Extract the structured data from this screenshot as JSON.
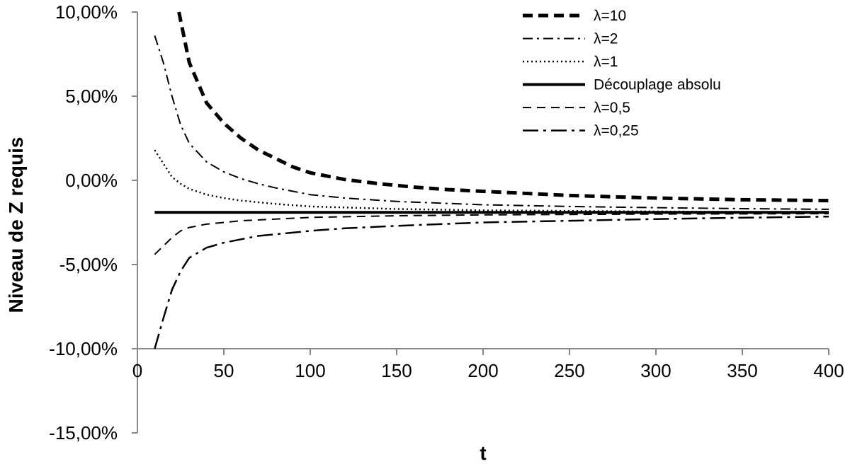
{
  "chart_data": {
    "type": "line",
    "title": "",
    "xlabel": "t",
    "ylabel": "Niveau de Z requis",
    "xlim": [
      0,
      400
    ],
    "ylim": [
      -15,
      10
    ],
    "x_ticks": [
      0,
      50,
      100,
      150,
      200,
      250,
      300,
      350,
      400
    ],
    "x_tick_labels": [
      "0",
      "50",
      "100",
      "150",
      "200",
      "250",
      "300",
      "350",
      "400"
    ],
    "y_ticks": [
      10,
      5,
      0,
      -5,
      -10,
      -15
    ],
    "y_tick_labels": [
      "10,00%",
      "5,00%",
      "0,00%",
      "-5,00%",
      "-10,00%",
      "-15,00%"
    ],
    "x_axis_at_y": -10,
    "grid": false,
    "legend_position": "top-right",
    "series": [
      {
        "name": "λ=10",
        "style": "dashed-thick",
        "x": [
          24,
          30,
          40,
          50,
          60,
          70,
          80,
          90,
          100,
          120,
          140,
          160,
          180,
          200,
          250,
          300,
          350,
          400
        ],
        "y": [
          10.0,
          7.0,
          4.6,
          3.4,
          2.5,
          1.8,
          1.3,
          0.8,
          0.45,
          0.05,
          -0.2,
          -0.4,
          -0.55,
          -0.65,
          -0.9,
          -1.05,
          -1.15,
          -1.2
        ]
      },
      {
        "name": "λ=2",
        "style": "dash-dot",
        "x": [
          10,
          15,
          20,
          25,
          30,
          40,
          50,
          60,
          70,
          80,
          100,
          120,
          150,
          200,
          250,
          300,
          350,
          400
        ],
        "y": [
          8.6,
          7.0,
          5.0,
          3.3,
          2.2,
          1.1,
          0.5,
          0.1,
          -0.2,
          -0.45,
          -0.85,
          -1.05,
          -1.25,
          -1.45,
          -1.55,
          -1.62,
          -1.68,
          -1.72
        ]
      },
      {
        "name": "λ=1",
        "style": "dotted",
        "x": [
          10,
          15,
          20,
          25,
          30,
          40,
          50,
          60,
          80,
          100,
          150,
          200,
          300,
          400
        ],
        "y": [
          1.8,
          1.0,
          0.2,
          -0.2,
          -0.5,
          -0.85,
          -1.05,
          -1.2,
          -1.4,
          -1.55,
          -1.7,
          -1.78,
          -1.85,
          -1.9
        ]
      },
      {
        "name": "Découplage absolu",
        "style": "solid",
        "x": [
          10,
          400
        ],
        "y": [
          -1.9,
          -1.9
        ]
      },
      {
        "name": "λ=0,5",
        "style": "dashed",
        "x": [
          10,
          15,
          20,
          25,
          30,
          40,
          50,
          60,
          80,
          100,
          150,
          200,
          300,
          400
        ],
        "y": [
          -4.4,
          -3.9,
          -3.4,
          -3.0,
          -2.8,
          -2.6,
          -2.5,
          -2.4,
          -2.3,
          -2.2,
          -2.1,
          -2.05,
          -2.0,
          -1.98
        ]
      },
      {
        "name": "λ=0,25",
        "style": "long-dash-dot",
        "x": [
          10,
          15,
          20,
          25,
          30,
          40,
          50,
          60,
          70,
          80,
          100,
          120,
          150,
          200,
          250,
          300,
          350,
          400
        ],
        "y": [
          -10.0,
          -8.2,
          -6.5,
          -5.4,
          -4.6,
          -4.0,
          -3.7,
          -3.5,
          -3.3,
          -3.2,
          -3.0,
          -2.85,
          -2.7,
          -2.5,
          -2.4,
          -2.3,
          -2.22,
          -2.15
        ]
      }
    ]
  }
}
